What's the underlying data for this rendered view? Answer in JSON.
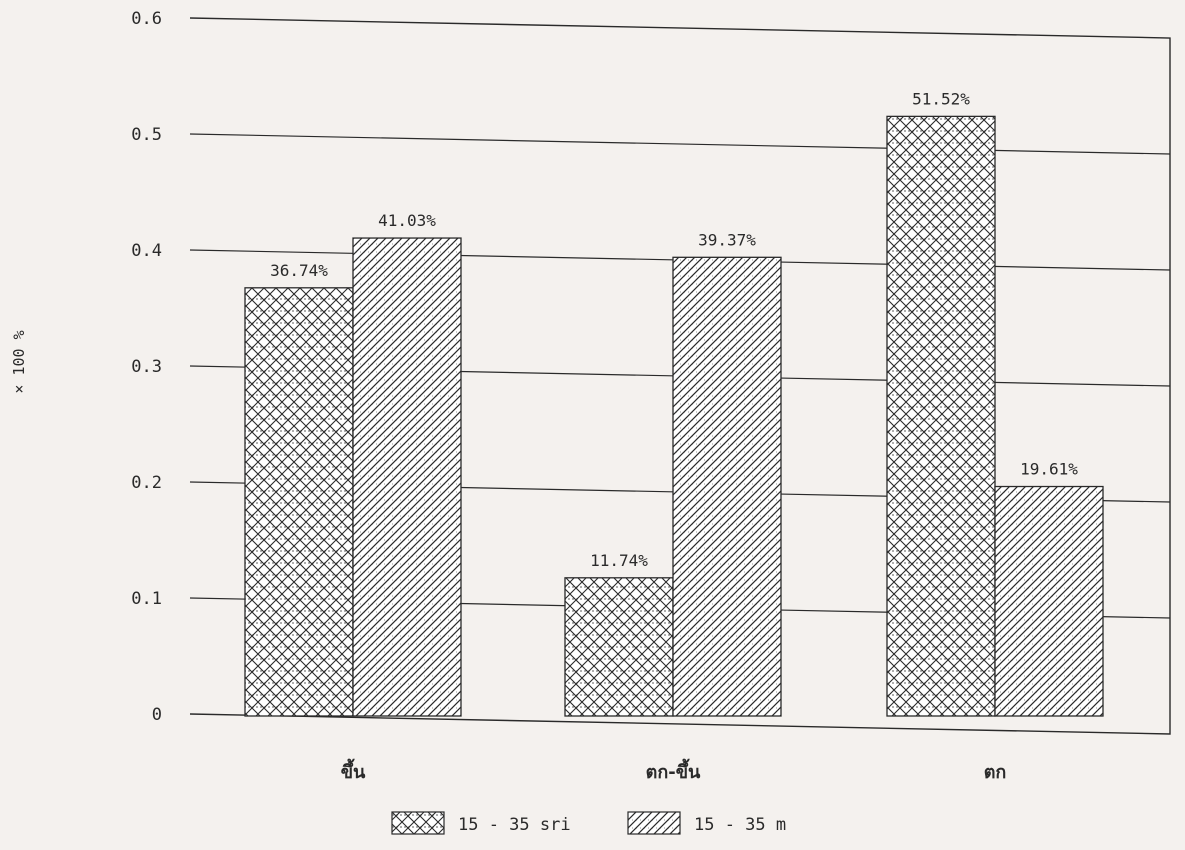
{
  "chart_data": {
    "type": "bar",
    "categories": [
      "ขึ้น",
      "ตก-ขึ้น",
      "ตก"
    ],
    "series": [
      {
        "name": "15 - 35 sri",
        "pattern": "crosshatch",
        "values": [
          0.3674,
          0.1174,
          0.5152
        ],
        "labels": [
          "36.74%",
          "11.74%",
          "51.52%"
        ]
      },
      {
        "name": "15 - 35 m",
        "pattern": "diagonal",
        "values": [
          0.4103,
          0.3937,
          0.1961
        ],
        "labels": [
          "41.03%",
          "39.37%",
          "19.61%"
        ]
      }
    ],
    "ylabel": "× 100 %",
    "ylim": [
      0,
      0.6
    ],
    "yticks": [
      0,
      0.1,
      0.2,
      0.3,
      0.4,
      0.5,
      0.6
    ],
    "ytick_labels": [
      "0",
      "0.1",
      "0.2",
      "0.3",
      "0.4",
      "0.5",
      "0.6"
    ],
    "grid": true,
    "legend_position": "bottom-center"
  },
  "colors": {
    "ink": "#2a2a2a",
    "grid": "#333333",
    "background": "#f4f1ee"
  }
}
